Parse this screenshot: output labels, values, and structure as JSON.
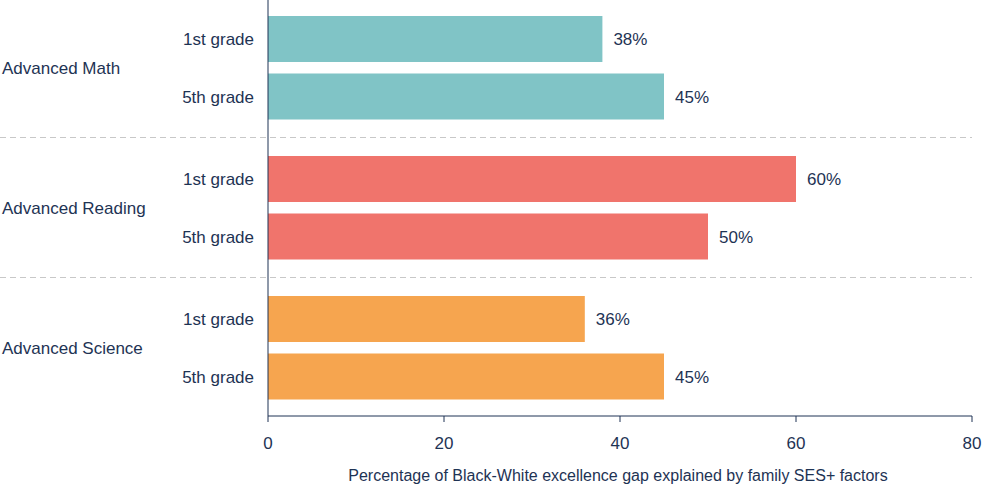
{
  "chart_data": {
    "type": "bar",
    "orientation": "horizontal",
    "x_label": "Percentage of Black-White excellence gap explained by family SES+ factors",
    "categories": [
      "1st grade",
      "5th grade"
    ],
    "series": [
      {
        "name": "Advanced Math",
        "color": "#80c4c6",
        "values": [
          38,
          45
        ],
        "value_labels": [
          "38%",
          "45%"
        ]
      },
      {
        "name": "Advanced Reading",
        "color": "#f0746c",
        "values": [
          60,
          50
        ],
        "value_labels": [
          "60%",
          "50%"
        ]
      },
      {
        "name": "Advanced Science",
        "color": "#f6a54f",
        "values": [
          36,
          45
        ],
        "value_labels": [
          "36%",
          "45%"
        ]
      }
    ],
    "xlim": [
      0,
      80
    ],
    "xticks": [
      0,
      20,
      40,
      60,
      80
    ],
    "data_labels": true,
    "grid": false
  }
}
